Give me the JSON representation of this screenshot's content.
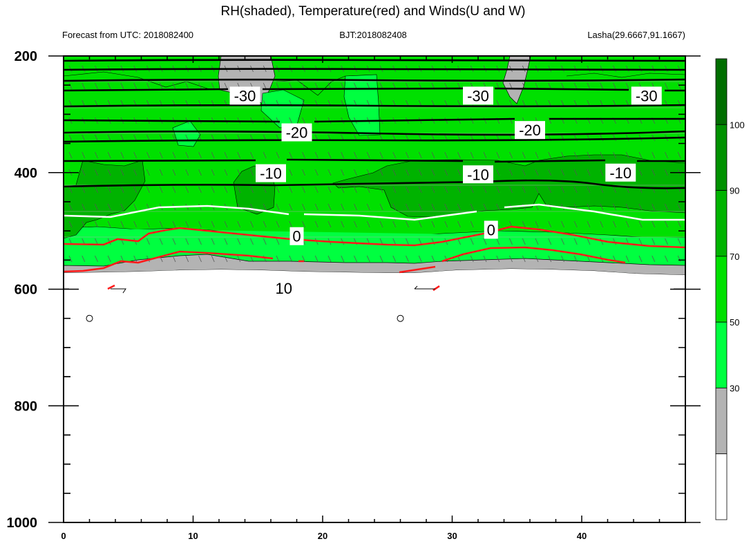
{
  "chart_data": {
    "type": "heatmap",
    "title": "RH(shaded), Temperature(red) and Winds(U and W)",
    "subtitle_left": "Forecast from UTC: 2018082400",
    "subtitle_center": "BJT:2018082408",
    "subtitle_right": "Lasha(29.6667,91.1667)",
    "xlabel": "",
    "ylabel": "",
    "xlim": [
      0,
      48
    ],
    "ylim": [
      1000,
      200
    ],
    "x_ticks": [
      "0",
      "10",
      "20",
      "30",
      "40"
    ],
    "y_ticks": [
      "200",
      "400",
      "600",
      "800",
      "1000"
    ],
    "colorbar": {
      "levels": [
        "30",
        "50",
        "70",
        "90",
        "100"
      ],
      "colors": [
        "#ffffff",
        "#b3b3b3",
        "#00ff40",
        "#00e000",
        "#00b300",
        "#009100",
        "#006e00"
      ]
    },
    "rh_colors": {
      "below_30": "#ffffff",
      "30_50": "#b3b3b3",
      "50_70": "#00ff40",
      "70_90": "#00e000",
      "90_100": "#00b300",
      "above_100": "#006e00"
    },
    "temperature_labels": [
      {
        "text": "-30",
        "x": 14,
        "p": 268
      },
      {
        "text": "-30",
        "x": 32,
        "p": 268
      },
      {
        "text": "-30",
        "x": 45,
        "p": 268
      },
      {
        "text": "-20",
        "x": 18,
        "p": 331
      },
      {
        "text": "-20",
        "x": 36,
        "p": 327
      },
      {
        "text": "-10",
        "x": 16,
        "p": 401
      },
      {
        "text": "-10",
        "x": 32,
        "p": 403
      },
      {
        "text": "-10",
        "x": 43,
        "p": 400
      },
      {
        "text": "0",
        "x": 18,
        "p": 509
      },
      {
        "text": "0",
        "x": 33,
        "p": 498
      },
      {
        "text": "10",
        "x": 17,
        "p": 598
      }
    ],
    "wind_missing_markers": [
      {
        "x": 2,
        "p": 650
      },
      {
        "x": 26,
        "p": 650
      }
    ]
  }
}
